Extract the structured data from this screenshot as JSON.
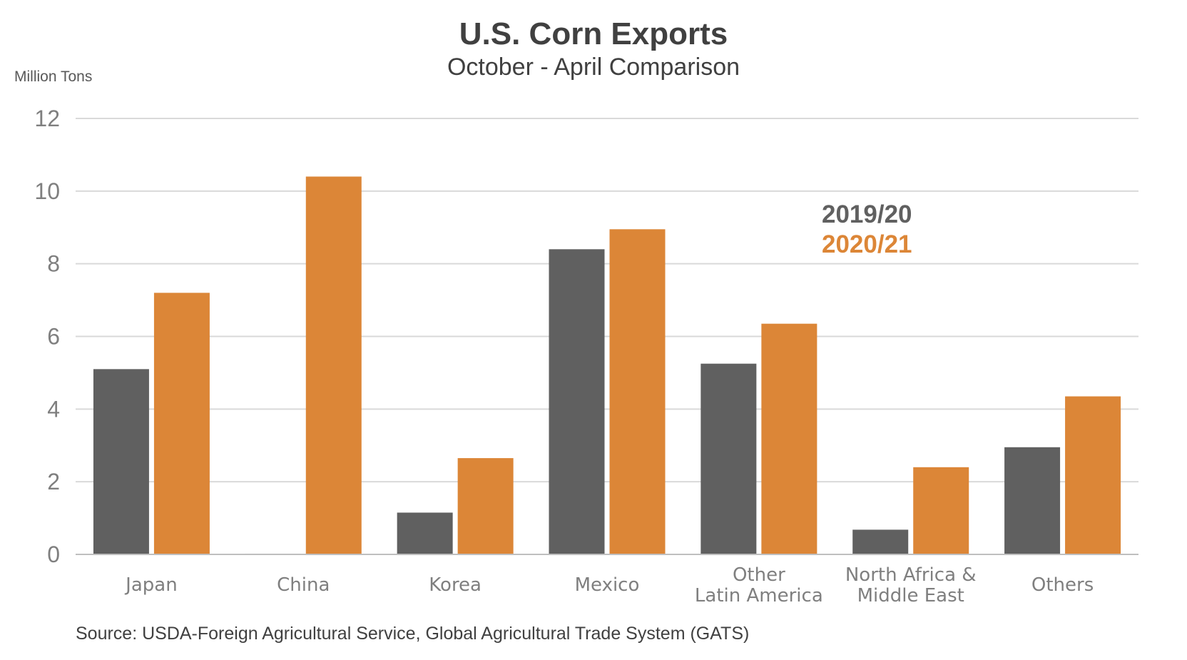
{
  "chart_data": {
    "type": "bar",
    "title": "U.S. Corn Exports",
    "subtitle": "October - April Comparison",
    "ylabel": "Million Tons",
    "xlabel": "",
    "ylim": [
      0,
      12
    ],
    "yticks": [
      0,
      2,
      4,
      6,
      8,
      10,
      12
    ],
    "grid": true,
    "legend_placement": "top-right",
    "categories": [
      [
        "Japan"
      ],
      [
        "China"
      ],
      [
        "Korea"
      ],
      [
        "Mexico"
      ],
      [
        "Other",
        "Latin America"
      ],
      [
        "North Africa &",
        "Middle East"
      ],
      [
        "Others"
      ]
    ],
    "series": [
      {
        "name": "2019/20",
        "color": "#606060",
        "values": [
          5.1,
          0.02,
          1.15,
          8.4,
          5.25,
          0.68,
          2.95
        ]
      },
      {
        "name": "2020/21",
        "color": "#dc8637",
        "values": [
          7.2,
          10.4,
          2.65,
          8.95,
          6.35,
          2.4,
          4.35
        ]
      }
    ],
    "source": "Source: USDA-Foreign Agricultural Service, Global Agricultural Trade System (GATS)"
  }
}
